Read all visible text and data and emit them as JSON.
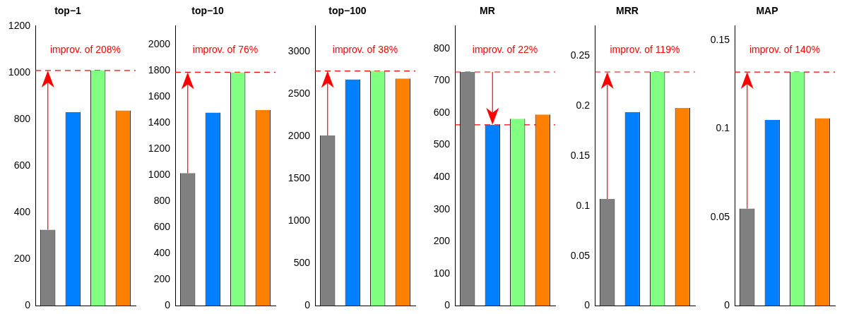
{
  "chart_data": [
    {
      "type": "bar",
      "title": "top−1",
      "categories": [
        null,
        null,
        null,
        null
      ],
      "values": [
        327,
        831,
        1009,
        838
      ],
      "colors": [
        "#808080",
        "#0080ff",
        "#80ff80",
        "#ff8000"
      ],
      "ylim": [
        0,
        1200
      ],
      "yticks": [
        0,
        200,
        400,
        600,
        800,
        1000,
        1200
      ],
      "ref_lines": [
        {
          "axis": "y",
          "value": 1009,
          "color": "#ff0000",
          "line_style": "dashed"
        }
      ],
      "annotations": [
        "improv. of 208%"
      ]
    },
    {
      "type": "bar",
      "title": "top−10",
      "categories": [
        null,
        null,
        null,
        null
      ],
      "values": [
        1016,
        1478,
        1786,
        1497
      ],
      "colors": [
        "#808080",
        "#0080ff",
        "#80ff80",
        "#ff8000"
      ],
      "ylim": [
        0,
        2140
      ],
      "yticks": [
        0,
        200,
        400,
        600,
        800,
        1000,
        1200,
        1400,
        1600,
        1800,
        2000
      ],
      "ref_lines": [
        {
          "axis": "y",
          "value": 1786,
          "color": "#ff0000",
          "line_style": "dashed"
        }
      ],
      "annotations": [
        "improv. of 76%"
      ]
    },
    {
      "type": "bar",
      "title": "top−100",
      "categories": [
        null,
        null,
        null,
        null
      ],
      "values": [
        2010,
        2670,
        2770,
        2680
      ],
      "colors": [
        "#808080",
        "#0080ff",
        "#80ff80",
        "#ff8000"
      ],
      "ylim": [
        0,
        3300
      ],
      "yticks": [
        0,
        500,
        1000,
        1500,
        2000,
        2500,
        3000
      ],
      "ref_lines": [
        {
          "axis": "y",
          "value": 2770,
          "color": "#ff0000",
          "line_style": "dashed"
        }
      ],
      "annotations": [
        "improv. of 38%"
      ]
    },
    {
      "type": "bar",
      "title": "MR",
      "categories": [
        null,
        null,
        null,
        null
      ],
      "values": [
        727,
        563,
        582,
        595
      ],
      "colors": [
        "#808080",
        "#0080ff",
        "#80ff80",
        "#ff8000"
      ],
      "ylim": [
        0,
        870
      ],
      "yticks": [
        0,
        100,
        200,
        300,
        400,
        500,
        600,
        700,
        800
      ],
      "ref_lines": [
        {
          "axis": "y",
          "value": 727,
          "color": "#ff0000",
          "line_style": "dashed"
        },
        {
          "axis": "y",
          "value": 563,
          "color": "#ff0000",
          "line_style": "dashed"
        }
      ],
      "annotations": [
        "improv. of 22%"
      ]
    },
    {
      "type": "bar",
      "title": "MRR",
      "categories": [
        null,
        null,
        null,
        null
      ],
      "values": [
        0.107,
        0.194,
        0.234,
        0.198
      ],
      "colors": [
        "#808080",
        "#0080ff",
        "#80ff80",
        "#ff8000"
      ],
      "ylim": [
        0,
        0.28
      ],
      "yticks": [
        0,
        0.05,
        0.1,
        0.15,
        0.2,
        0.25
      ],
      "ref_lines": [
        {
          "axis": "y",
          "value": 0.234,
          "color": "#ff0000",
          "line_style": "dashed"
        }
      ],
      "annotations": [
        "improv. of 119%"
      ]
    },
    {
      "type": "bar",
      "title": "MAP",
      "categories": [
        null,
        null,
        null,
        null
      ],
      "values": [
        0.055,
        0.105,
        0.132,
        0.106
      ],
      "colors": [
        "#808080",
        "#0080ff",
        "#80ff80",
        "#ff8000"
      ],
      "ylim": [
        0,
        0.158
      ],
      "yticks": [
        0,
        0.05,
        0.1,
        0.15
      ],
      "ref_lines": [
        {
          "axis": "y",
          "value": 0.132,
          "color": "#ff0000",
          "line_style": "dashed"
        }
      ],
      "annotations": [
        "improv. of 140%"
      ]
    }
  ]
}
